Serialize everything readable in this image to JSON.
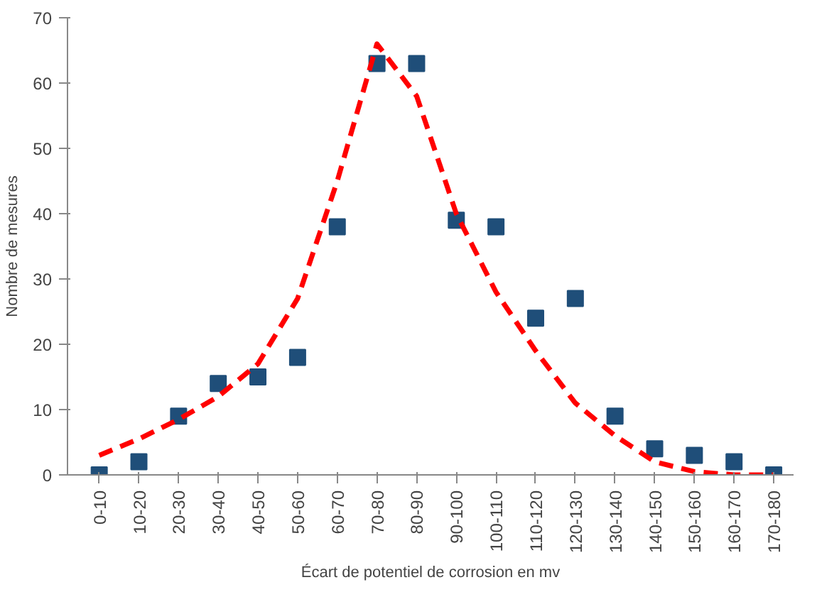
{
  "chart_data": {
    "type": "scatter",
    "xlabel": "Écart de potentiel de corrosion en mv",
    "ylabel": "Nombre de mesures",
    "categories": [
      "0-10",
      "10-20",
      "20-30",
      "30-40",
      "40-50",
      "50-60",
      "60-70",
      "70-80",
      "80-90",
      "90-100",
      "100-110",
      "110-120",
      "120-130",
      "130-140",
      "140-150",
      "150-160",
      "160-170",
      "170-180"
    ],
    "series": [
      {
        "color": "#1f4e79",
        "marker": "square",
        "values": [
          0,
          2,
          9,
          14,
          15,
          18,
          38,
          63,
          63,
          39,
          38,
          24,
          27,
          9,
          4,
          3,
          2,
          0
        ]
      },
      {
        "type": "line",
        "color": "#ff0000",
        "line_style": "dashed",
        "marker": "none",
        "values": [
          3,
          5.5,
          8.5,
          12,
          17,
          27,
          45,
          66,
          58,
          40,
          28,
          19,
          11,
          6,
          2,
          0.5,
          0,
          0
        ]
      }
    ],
    "ylim": [
      0,
      70
    ],
    "yticks": [
      0,
      10,
      20,
      30,
      40,
      50,
      60,
      70
    ],
    "grid": false
  }
}
